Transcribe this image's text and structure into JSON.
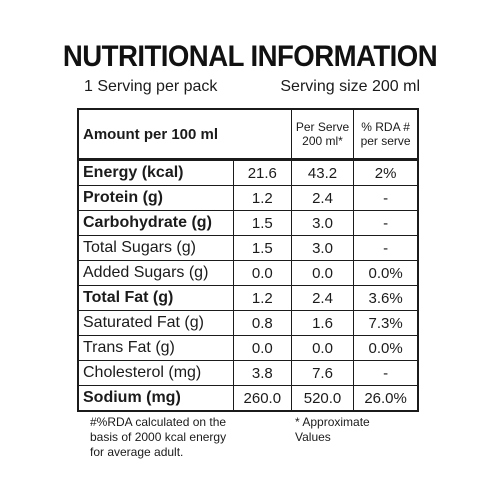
{
  "title": "NUTRITIONAL INFORMATION",
  "serving": {
    "per_pack": "1 Serving  per pack",
    "size": "Serving size 200 ml"
  },
  "table": {
    "header": {
      "amount": "Amount per 100 ml",
      "per_serve_line1": "Per Serve",
      "per_serve_line2": "200 ml*",
      "rda_line1": "% RDA #",
      "rda_line2": "per serve"
    },
    "rows": [
      {
        "name": "Energy (kcal)",
        "per100": "21.6",
        "serve": "43.2",
        "rda": "2%",
        "bold": true
      },
      {
        "name": "Protein (g)",
        "per100": "1.2",
        "serve": "2.4",
        "rda": "-",
        "bold": true
      },
      {
        "name": "Carbohydrate (g)",
        "per100": "1.5",
        "serve": "3.0",
        "rda": "-",
        "bold": true
      },
      {
        "name": "Total Sugars (g)",
        "per100": "1.5",
        "serve": "3.0",
        "rda": "-",
        "bold": false
      },
      {
        "name": "Added Sugars (g)",
        "per100": "0.0",
        "serve": "0.0",
        "rda": "0.0%",
        "bold": false
      },
      {
        "name": "Total Fat (g)",
        "per100": "1.2",
        "serve": "2.4",
        "rda": "3.6%",
        "bold": true
      },
      {
        "name": "Saturated Fat (g)",
        "per100": "0.8",
        "serve": "1.6",
        "rda": "7.3%",
        "bold": false
      },
      {
        "name": "Trans Fat (g)",
        "per100": "0.0",
        "serve": "0.0",
        "rda": "0.0%",
        "bold": false
      },
      {
        "name": "Cholesterol (mg)",
        "per100": "3.8",
        "serve": "7.6",
        "rda": "-",
        "bold": false
      },
      {
        "name": "Sodium (mg)",
        "per100": "260.0",
        "serve": "520.0",
        "rda": "26.0%",
        "bold": true
      }
    ]
  },
  "footnotes": {
    "rda_line1": "#%RDA calculated on the",
    "rda_line2": "basis of 2000 kcal energy",
    "rda_line3": "for average adult.",
    "approx_line1": "* Approximate",
    "approx_line2": "Values"
  }
}
